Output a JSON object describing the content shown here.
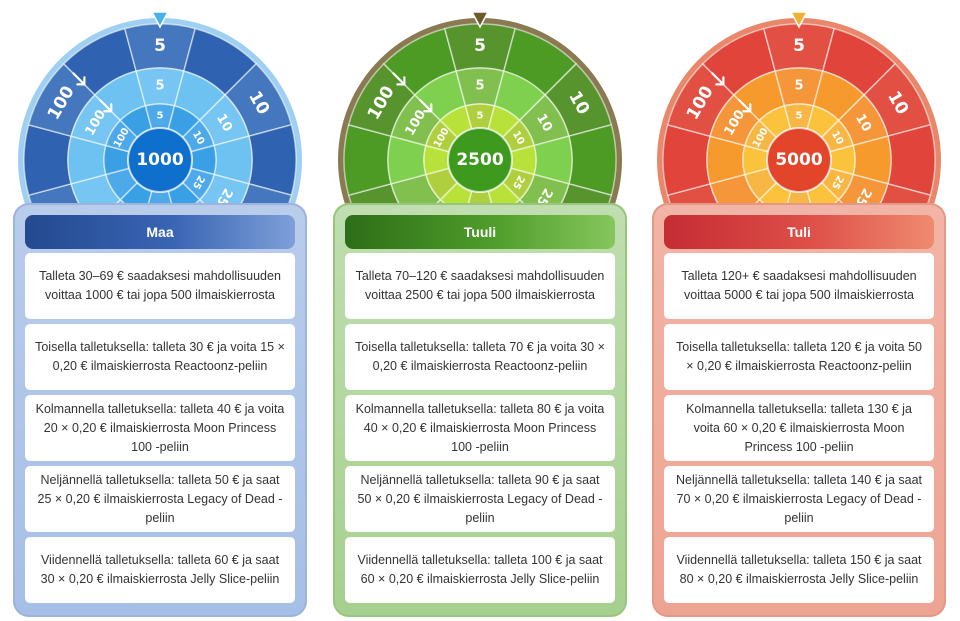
{
  "columns": [
    {
      "key": "maa",
      "title": "Maa",
      "wheel": {
        "center": "1000",
        "outer_values": [
          "100",
          "5",
          "10",
          "25"
        ],
        "middle_values": [
          "100",
          "5",
          "10",
          "25"
        ],
        "inner_values": [
          "100",
          "5",
          "10",
          "25"
        ],
        "colors": {
          "outer": "#2f63b1",
          "middle": "#6ec2f2",
          "inner": "#3aa0e6",
          "hub": "#0f6fcc",
          "rim": "#9fd0f2",
          "pointer": "#48b0ee"
        }
      },
      "items": [
        "Talleta 30–69 € saadaksesi mahdollisuuden voittaa 1000 € tai jopa 500 ilmaiskierrosta",
        "Toisella talletuksella: talleta 30 € ja voita 15 × 0,20 € ilmaiskierrosta Reactoonz-peliin",
        "Kolmannella talletuksella: talleta 40 € ja voita 20 × 0,20 € ilmaiskierrosta Moon Princess 100 -peliin",
        "Neljännellä talletuksella: talleta 50 € ja saat 25 × 0,20 € ilmaiskierrosta Legacy of Dead -peliin",
        "Viidennellä talletuksella: talleta 60 € ja saat 30 × 0,20 € ilmaiskierrosta Jelly Slice-peliin"
      ]
    },
    {
      "key": "tuuli",
      "title": "Tuuli",
      "wheel": {
        "center": "2500",
        "outer_values": [
          "100",
          "5",
          "10",
          "25"
        ],
        "middle_values": [
          "100",
          "5",
          "10",
          "25"
        ],
        "inner_values": [
          "100",
          "5",
          "10",
          "25"
        ],
        "colors": {
          "outer": "#4d9a24",
          "middle": "#7fd04e",
          "inner": "#b8e23a",
          "hub": "#3e9a1e",
          "rim": "#8a7a52",
          "pointer": "#6b5a2c"
        }
      },
      "items": [
        "Talleta 70–120 € saadaksesi mahdollisuuden voittaa 2500 € tai jopa 500 ilmaiskierrosta",
        "Toisella talletuksella: talleta 70 € ja voita 30 × 0,20 € ilmaiskierrosta Reactoonz-peliin",
        "Kolmannella talletuksella: talleta 80 € ja voita 40 × 0,20 € ilmaiskierrosta Moon Princess 100 -peliin",
        "Neljännellä talletuksella: talleta 90 € ja saat 50 × 0,20 € ilmaiskierrosta Legacy of Dead -peliin",
        "Viidennellä talletuksella: talleta 100 € ja saat 60 × 0,20 € ilmaiskierrosta Jelly Slice-peliin"
      ]
    },
    {
      "key": "tuli",
      "title": "Tuli",
      "wheel": {
        "center": "5000",
        "outer_values": [
          "100",
          "5",
          "10",
          "25"
        ],
        "middle_values": [
          "100",
          "5",
          "10",
          "25"
        ],
        "inner_values": [
          "100",
          "5",
          "10",
          "25"
        ],
        "colors": {
          "outer": "#e0443a",
          "middle": "#f79a2e",
          "inner": "#fbc23c",
          "hub": "#e2452a",
          "rim": "#e9876a",
          "pointer": "#f0b030"
        }
      },
      "items": [
        "Talleta 120+ € saadaksesi mahdollisuuden voittaa 5000 € tai jopa 500 ilmaiskierrosta",
        "Toisella talletuksella: talleta 120 € ja voita 50 × 0,20 € ilmaiskierrosta Reactoonz-peliin",
        "Kolmannella talletuksella: talleta 130 € ja voita 60 × 0,20 € ilmaiskierrosta Moon Princess 100 -peliin",
        "Neljännellä talletuksella: talleta 140 € ja saat 70 × 0,20 € ilmaiskierrosta Legacy of Dead -peliin",
        "Viidennellä talletuksella: talleta 150 € ja saat 80 × 0,20 € ilmaiskierrosta Jelly Slice-peliin"
      ]
    }
  ]
}
